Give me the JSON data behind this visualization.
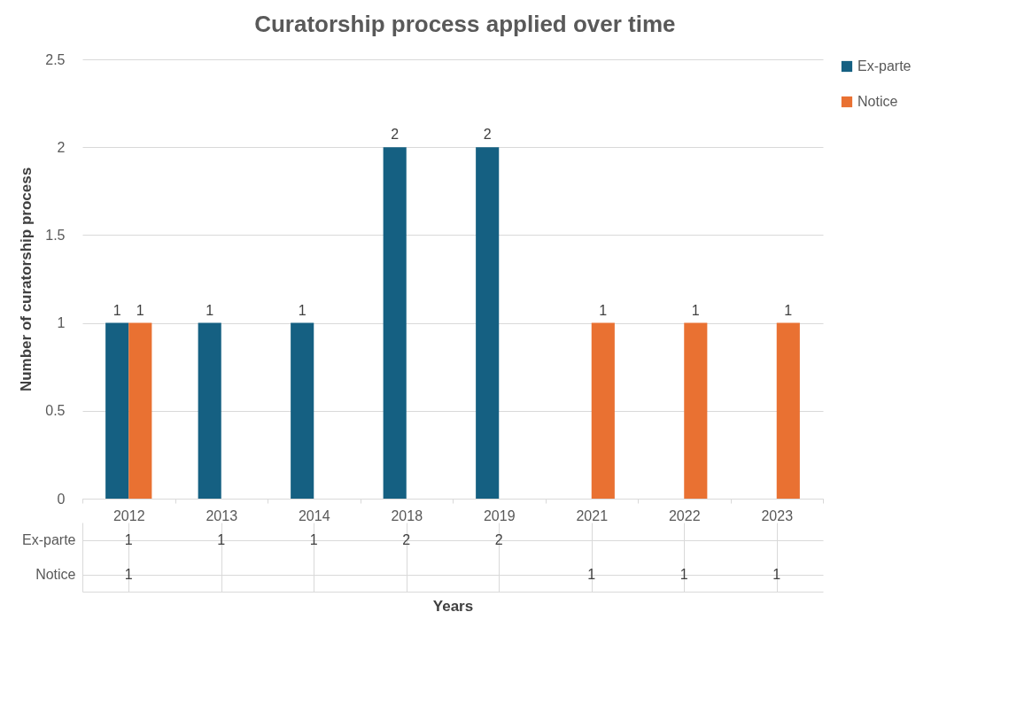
{
  "chart_data": {
    "type": "bar",
    "title": "Curatorship process applied over time",
    "xlabel": "Years",
    "ylabel": "Number of curatorship process",
    "categories": [
      "2012",
      "2013",
      "2014",
      "2018",
      "2019",
      "2021",
      "2022",
      "2023"
    ],
    "series": [
      {
        "name": "Ex-parte",
        "color": "#156082",
        "values": [
          1,
          1,
          1,
          2,
          2,
          null,
          null,
          null
        ],
        "value_labels": [
          "1",
          "1",
          "1",
          "2",
          "2",
          null,
          null,
          null
        ]
      },
      {
        "name": "Notice",
        "color": "#e97132",
        "values": [
          1,
          null,
          null,
          null,
          null,
          1,
          1,
          1
        ],
        "value_labels": [
          "1",
          null,
          null,
          null,
          null,
          "1",
          "1",
          "1"
        ]
      }
    ],
    "annotations": [
      "1",
      "1",
      "1",
      "2",
      "2",
      "1",
      "1",
      "1",
      "1"
    ],
    "ylim": [
      0,
      2.5
    ],
    "yticks": [
      0,
      0.5,
      1,
      1.5,
      2,
      2.5
    ],
    "grid": "y",
    "legend": "right"
  }
}
